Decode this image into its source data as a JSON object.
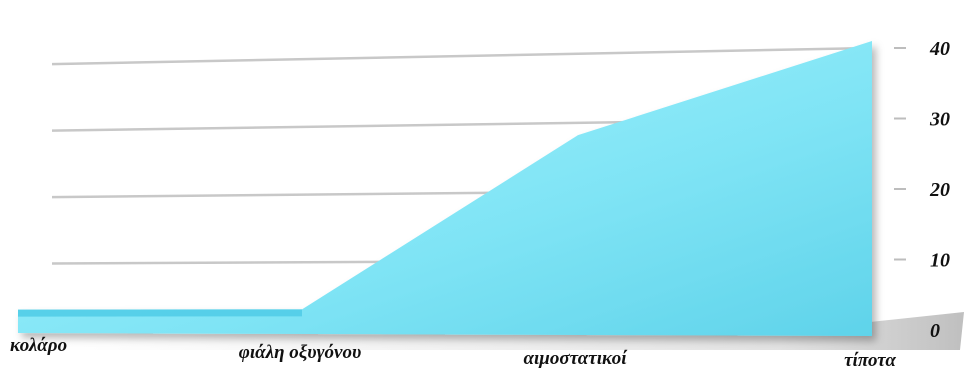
{
  "chart_data": {
    "type": "area",
    "categories": [
      "κολάρο",
      "φιάλη οξυγόνου",
      "αιμοστατικοί",
      "τίποτα"
    ],
    "values": [
      3,
      3,
      28,
      41
    ],
    "yticks": [
      0,
      10,
      20,
      30,
      40
    ],
    "ylim": [
      0,
      40
    ],
    "grid": true,
    "legend": "none",
    "colors": {
      "fill_light": "#9ef3ff",
      "fill_dark": "#4fcbe6",
      "gridline": "#c8c8c8"
    }
  }
}
